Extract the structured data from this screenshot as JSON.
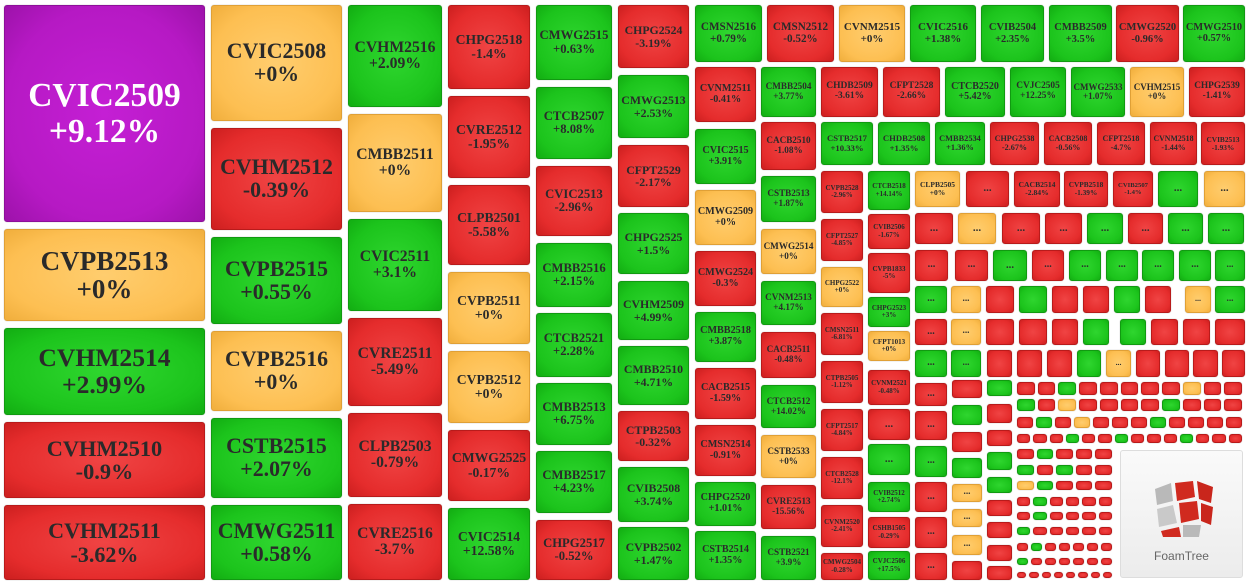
{
  "tiles": [
    {
      "code": "CVIC2509",
      "change": "+9.12%",
      "state": "top"
    },
    {
      "code": "CVPB2513",
      "change": "+0%",
      "state": "flat"
    },
    {
      "code": "CVHM2514",
      "change": "+2.99%",
      "state": "up"
    },
    {
      "code": "CVHM2510",
      "change": "-0.9%",
      "state": "down"
    },
    {
      "code": "CVHM2511",
      "change": "-3.62%",
      "state": "down"
    },
    {
      "code": "CVIC2508",
      "change": "+0%",
      "state": "flat"
    },
    {
      "code": "CVHM2512",
      "change": "-0.39%",
      "state": "down"
    },
    {
      "code": "CVPB2515",
      "change": "+0.55%",
      "state": "up"
    },
    {
      "code": "CVPB2516",
      "change": "+0%",
      "state": "flat"
    },
    {
      "code": "CSTB2515",
      "change": "+2.07%",
      "state": "up"
    },
    {
      "code": "CMWG2511",
      "change": "+0.58%",
      "state": "up"
    },
    {
      "code": "CVHM2516",
      "change": "+2.09%",
      "state": "up"
    },
    {
      "code": "CMBB2511",
      "change": "+0%",
      "state": "flat"
    },
    {
      "code": "CVIC2511",
      "change": "+3.1%",
      "state": "up"
    },
    {
      "code": "CVRE2511",
      "change": "-5.49%",
      "state": "down"
    },
    {
      "code": "CLPB2503",
      "change": "-0.79%",
      "state": "down"
    },
    {
      "code": "CVRE2516",
      "change": "-3.7%",
      "state": "down"
    },
    {
      "code": "CHPG2518",
      "change": "-1.4%",
      "state": "down"
    },
    {
      "code": "CVRE2512",
      "change": "-1.95%",
      "state": "down"
    },
    {
      "code": "CLPB2501",
      "change": "-5.58%",
      "state": "down"
    },
    {
      "code": "CVPB2511",
      "change": "+0%",
      "state": "flat"
    },
    {
      "code": "CVPB2512",
      "change": "+0%",
      "state": "flat"
    },
    {
      "code": "CMWG2525",
      "change": "-0.17%",
      "state": "down"
    },
    {
      "code": "CVIC2514",
      "change": "+12.58%",
      "state": "up"
    },
    {
      "code": "CMWG2515",
      "change": "+0.63%",
      "state": "up"
    },
    {
      "code": "CTCB2507",
      "change": "+8.08%",
      "state": "up"
    },
    {
      "code": "CVIC2513",
      "change": "-2.96%",
      "state": "down"
    },
    {
      "code": "CMBB2516",
      "change": "+2.15%",
      "state": "up"
    },
    {
      "code": "CTCB2521",
      "change": "+2.28%",
      "state": "up"
    },
    {
      "code": "CMBB2513",
      "change": "+6.75%",
      "state": "up"
    },
    {
      "code": "CMBB2517",
      "change": "+4.23%",
      "state": "up"
    },
    {
      "code": "CHPG2517",
      "change": "-0.52%",
      "state": "down"
    },
    {
      "code": "CHPG2524",
      "change": "-3.19%",
      "state": "down"
    },
    {
      "code": "CMWG2513",
      "change": "+2.53%",
      "state": "up"
    },
    {
      "code": "CFPT2529",
      "change": "-2.17%",
      "state": "down"
    },
    {
      "code": "CHPG2525",
      "change": "+1.5%",
      "state": "up"
    },
    {
      "code": "CVHM2509",
      "change": "+4.99%",
      "state": "up"
    },
    {
      "code": "CMBB2510",
      "change": "+4.71%",
      "state": "up"
    },
    {
      "code": "CTPB2503",
      "change": "-0.32%",
      "state": "down"
    },
    {
      "code": "CVIB2508",
      "change": "+3.74%",
      "state": "up"
    },
    {
      "code": "CVPB2502",
      "change": "+1.47%",
      "state": "up"
    },
    {
      "code": "CMSN2516",
      "change": "+0.79%",
      "state": "up"
    },
    {
      "code": "CMSN2512",
      "change": "-0.52%",
      "state": "down"
    },
    {
      "code": "CVNM2515",
      "change": "+0%",
      "state": "flat"
    },
    {
      "code": "CVIC2516",
      "change": "+1.38%",
      "state": "up"
    },
    {
      "code": "CVIB2504",
      "change": "+2.35%",
      "state": "up"
    },
    {
      "code": "CMBB2509",
      "change": "+3.5%",
      "state": "up"
    },
    {
      "code": "CMWG2520",
      "change": "-0.96%",
      "state": "down"
    },
    {
      "code": "CMWG2510",
      "change": "+0.57%",
      "state": "up"
    },
    {
      "code": "CVNM2511",
      "change": "-0.41%",
      "state": "down"
    },
    {
      "code": "CVIC2515",
      "change": "+3.91%",
      "state": "up"
    },
    {
      "code": "CMWG2509",
      "change": "+0%",
      "state": "flat"
    },
    {
      "code": "CMWG2524",
      "change": "-0.3%",
      "state": "down"
    },
    {
      "code": "CMBB2518",
      "change": "+3.87%",
      "state": "up"
    },
    {
      "code": "CACB2515",
      "change": "-1.59%",
      "state": "down"
    },
    {
      "code": "CMSN2514",
      "change": "-0.91%",
      "state": "down"
    },
    {
      "code": "CHPG2520",
      "change": "+1.01%",
      "state": "up"
    },
    {
      "code": "CSTB2514",
      "change": "+1.35%",
      "state": "up"
    },
    {
      "code": "CMBB2504",
      "change": "+3.77%",
      "state": "up"
    },
    {
      "code": "CACB2510",
      "change": "-1.08%",
      "state": "down"
    },
    {
      "code": "CSTB2513",
      "change": "+1.87%",
      "state": "up"
    },
    {
      "code": "CMWG2514",
      "change": "+0%",
      "state": "flat"
    },
    {
      "code": "CVNM2513",
      "change": "+4.17%",
      "state": "up"
    },
    {
      "code": "CACB2511",
      "change": "-0.48%",
      "state": "down"
    },
    {
      "code": "CTCB2512",
      "change": "+14.02%",
      "state": "up"
    },
    {
      "code": "CSTB2533",
      "change": "+0%",
      "state": "flat"
    },
    {
      "code": "CVRE2513",
      "change": "-15.56%",
      "state": "down"
    },
    {
      "code": "CSTB2521",
      "change": "+3.9%",
      "state": "up"
    },
    {
      "code": "CHDB2509",
      "change": "-3.61%",
      "state": "down"
    },
    {
      "code": "CFPT2528",
      "change": "-2.66%",
      "state": "down"
    },
    {
      "code": "CTCB2520",
      "change": "+5.42%",
      "state": "up"
    },
    {
      "code": "CVJC2505",
      "change": "+12.25%",
      "state": "up"
    },
    {
      "code": "CMWG2533",
      "change": "+1.07%",
      "state": "up"
    },
    {
      "code": "CVHM2515",
      "change": "+0%",
      "state": "flat"
    },
    {
      "code": "CHPG2539",
      "change": "-1.41%",
      "state": "down"
    },
    {
      "code": "CSTB2517",
      "change": "+10.33%",
      "state": "up"
    },
    {
      "code": "CHDB2508",
      "change": "+1.35%",
      "state": "up"
    },
    {
      "code": "CMBB2534",
      "change": "+1.36%",
      "state": "up"
    },
    {
      "code": "CHPG2538",
      "change": "-2.67%",
      "state": "down"
    },
    {
      "code": "CACB2508",
      "change": "-0.56%",
      "state": "down"
    },
    {
      "code": "CFPT2518",
      "change": "-4.7%",
      "state": "down"
    },
    {
      "code": "CVNM2518",
      "change": "-1.44%",
      "state": "down"
    },
    {
      "code": "CVIB2513",
      "change": "-1.93%",
      "state": "down"
    },
    {
      "code": "CVPB2528",
      "change": "-2.96%",
      "state": "down"
    },
    {
      "code": "CFPT2527",
      "change": "-4.85%",
      "state": "down"
    },
    {
      "code": "CHPG2522",
      "change": "+0%",
      "state": "flat"
    },
    {
      "code": "CMSN2511",
      "change": "-6.81%",
      "state": "down"
    },
    {
      "code": "CTPB2505",
      "change": "-1.12%",
      "state": "down"
    },
    {
      "code": "CFPT2517",
      "change": "-4.84%",
      "state": "down"
    },
    {
      "code": "CTCB2528",
      "change": "-12.1%",
      "state": "down"
    },
    {
      "code": "CVNM2520",
      "change": "-2.41%",
      "state": "down"
    },
    {
      "code": "CMWG2504",
      "change": "-0.28%",
      "state": "down"
    },
    {
      "code": "CTCB2518",
      "change": "+14.14%",
      "state": "up"
    },
    {
      "code": "CVIB2506",
      "change": "-1.67%",
      "state": "down"
    },
    {
      "code": "CVPB1833",
      "change": "-5%",
      "state": "down"
    },
    {
      "code": "CHPG2523",
      "change": "+3%",
      "state": "up"
    },
    {
      "code": "CFPT1013",
      "change": "+0%",
      "state": "flat"
    },
    {
      "code": "CVNM2521",
      "change": "-0.48%",
      "state": "down"
    },
    {
      "code": "CVIB2512",
      "change": "+2.74%",
      "state": "up"
    },
    {
      "code": "CSHB1505",
      "change": "-0.29%",
      "state": "down"
    },
    {
      "code": "CVJC2506",
      "change": "+17.5%",
      "state": "up"
    },
    {
      "code": "CLPB2505",
      "change": "+0%",
      "state": "flat"
    },
    {
      "code": "CACB2514",
      "change": "-2.84%",
      "state": "down"
    },
    {
      "code": "CVPB2518",
      "change": "-1.39%",
      "state": "down"
    },
    {
      "code": "CVIB2507",
      "change": "-1.4%",
      "state": "down"
    }
  ],
  "dots": [
    {
      "state": "down",
      "text": "..."
    },
    {
      "state": "up",
      "text": "..."
    },
    {
      "state": "flat",
      "text": "..."
    },
    {
      "state": "down",
      "text": "..."
    },
    {
      "state": "up",
      "text": "..."
    },
    {
      "state": "down",
      "text": "..."
    },
    {
      "state": "flat",
      "text": "..."
    },
    {
      "state": "down",
      "text": "..."
    },
    {
      "state": "down",
      "text": "..."
    },
    {
      "state": "up",
      "text": "..."
    },
    {
      "state": "down",
      "text": "..."
    },
    {
      "state": "up",
      "text": "..."
    },
    {
      "state": "up",
      "text": "..."
    },
    {
      "state": "down",
      "text": "..."
    },
    {
      "state": "down",
      "text": "..."
    },
    {
      "state": "up",
      "text": "..."
    },
    {
      "state": "down",
      "text": "..."
    },
    {
      "state": "up",
      "text": "..."
    },
    {
      "state": "up",
      "text": "..."
    },
    {
      "state": "up",
      "text": "..."
    },
    {
      "state": "up",
      "text": "..."
    },
    {
      "state": "up",
      "text": "..."
    },
    {
      "state": "up",
      "text": "..."
    },
    {
      "state": "flat",
      "text": "..."
    },
    {
      "state": "down"
    },
    {
      "state": "up"
    },
    {
      "state": "down"
    },
    {
      "state": "down"
    },
    {
      "state": "up"
    },
    {
      "state": "down"
    },
    {
      "state": "flat",
      "text": "..."
    },
    {
      "state": "up",
      "text": "..."
    },
    {
      "state": "down",
      "text": "..."
    },
    {
      "state": "flat",
      "text": "..."
    },
    {
      "state": "down"
    },
    {
      "state": "down"
    },
    {
      "state": "down"
    },
    {
      "state": "up"
    },
    {
      "state": "up"
    },
    {
      "state": "down"
    },
    {
      "state": "down"
    },
    {
      "state": "down"
    },
    {
      "state": "up",
      "text": "..."
    },
    {
      "state": "up",
      "text": "..."
    },
    {
      "state": "down"
    },
    {
      "state": "down"
    },
    {
      "state": "down"
    },
    {
      "state": "up"
    },
    {
      "state": "flat",
      "text": "..."
    },
    {
      "state": "down"
    },
    {
      "state": "down"
    },
    {
      "state": "down"
    },
    {
      "state": "down"
    },
    {
      "state": "down",
      "text": "..."
    },
    {
      "state": "down",
      "text": "..."
    },
    {
      "state": "up",
      "text": "..."
    },
    {
      "state": "down",
      "text": "..."
    },
    {
      "state": "down",
      "text": "..."
    },
    {
      "state": "down",
      "text": "..."
    },
    {
      "state": "down"
    },
    {
      "state": "up"
    },
    {
      "state": "down"
    },
    {
      "state": "up"
    },
    {
      "state": "flat",
      "text": "..."
    },
    {
      "state": "flat",
      "text": "..."
    },
    {
      "state": "flat",
      "text": "..."
    },
    {
      "state": "down"
    },
    {
      "state": "up"
    },
    {
      "state": "down"
    },
    {
      "state": "down"
    },
    {
      "state": "up"
    },
    {
      "state": "up"
    },
    {
      "state": "down"
    },
    {
      "state": "down"
    },
    {
      "state": "down"
    },
    {
      "state": "down"
    }
  ],
  "strips": [
    [
      "down",
      "down",
      "up",
      "down",
      "down",
      "down",
      "down",
      "down",
      "flat",
      "down",
      "down"
    ],
    [
      "up",
      "down",
      "flat",
      "down",
      "down",
      "down",
      "down",
      "up",
      "down",
      "down",
      "down"
    ],
    [
      "down",
      "up",
      "down",
      "flat",
      "down",
      "down",
      "down",
      "up",
      "down",
      "down",
      "down",
      "down"
    ],
    [
      "down",
      "down",
      "down",
      "up",
      "down",
      "down",
      "up",
      "down",
      "down",
      "down",
      "up",
      "down",
      "down",
      "down"
    ],
    [
      "down",
      "up",
      "down",
      "down",
      "down"
    ],
    [
      "up",
      "down",
      "up",
      "down",
      "down"
    ],
    [
      "flat",
      "up",
      "down",
      "down",
      "down"
    ],
    [
      "down",
      "up",
      "down",
      "down",
      "down",
      "down"
    ],
    [
      "down",
      "up",
      "down",
      "down",
      "down",
      "down"
    ],
    [
      "up",
      "down",
      "down",
      "down",
      "down",
      "down"
    ],
    [
      "down",
      "up",
      "down",
      "down",
      "down",
      "down",
      "down"
    ],
    [
      "up",
      "down",
      "down",
      "down",
      "down",
      "down",
      "down"
    ],
    [
      "down",
      "down",
      "down",
      "down",
      "down",
      "down",
      "down",
      "down"
    ]
  ],
  "logo": "FoamTree"
}
